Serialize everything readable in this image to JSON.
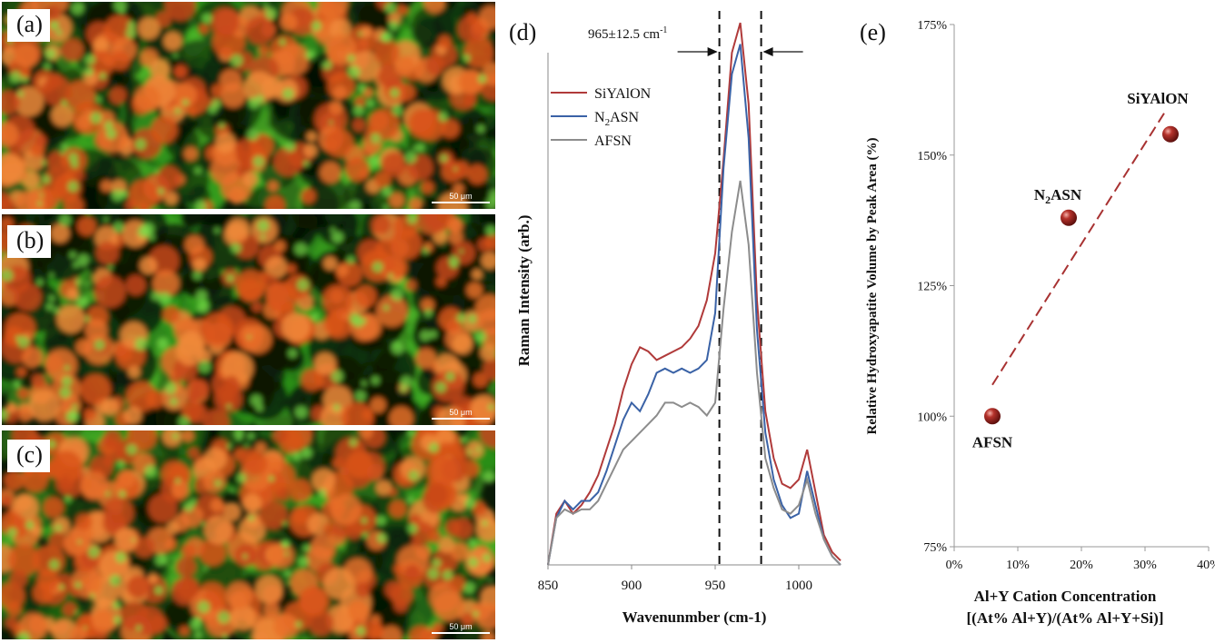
{
  "panels": [
    {
      "label": "(a)",
      "scale_label": "50 μm"
    },
    {
      "label": "(b)",
      "scale_label": "50 μm"
    },
    {
      "label": "(c)",
      "scale_label": "50 μm"
    }
  ],
  "chart_data": [
    {
      "panel": "(d)",
      "type": "line",
      "xlabel": "Wavenunmber (cm-1)",
      "ylabel": "Raman Intensity (arb.)",
      "xlim": [
        850,
        1025
      ],
      "xticks": [
        850,
        900,
        950,
        1000
      ],
      "annotation": "965±12.5 cm",
      "annotation_sup": "-1",
      "vlines": [
        952.5,
        977.5
      ],
      "x": [
        850,
        855,
        860,
        865,
        870,
        875,
        880,
        885,
        890,
        895,
        900,
        905,
        910,
        915,
        920,
        925,
        930,
        935,
        940,
        945,
        950,
        955,
        960,
        965,
        970,
        975,
        980,
        985,
        990,
        995,
        1000,
        1005,
        1010,
        1015,
        1020,
        1025
      ],
      "series": [
        {
          "name": "SiYAlON",
          "color": "#b03a3a",
          "values": [
            0.0,
            0.12,
            0.15,
            0.12,
            0.14,
            0.17,
            0.21,
            0.27,
            0.33,
            0.41,
            0.47,
            0.51,
            0.5,
            0.48,
            0.49,
            0.5,
            0.51,
            0.53,
            0.56,
            0.62,
            0.73,
            0.95,
            1.2,
            1.27,
            1.08,
            0.62,
            0.36,
            0.25,
            0.19,
            0.18,
            0.2,
            0.27,
            0.17,
            0.07,
            0.03,
            0.01
          ]
        },
        {
          "name": "N2ASN",
          "color": "#3a62a6",
          "values": [
            0.0,
            0.11,
            0.15,
            0.13,
            0.15,
            0.15,
            0.17,
            0.22,
            0.28,
            0.34,
            0.38,
            0.36,
            0.4,
            0.45,
            0.46,
            0.45,
            0.46,
            0.45,
            0.46,
            0.48,
            0.59,
            0.93,
            1.15,
            1.22,
            1.0,
            0.55,
            0.31,
            0.2,
            0.14,
            0.11,
            0.12,
            0.22,
            0.14,
            0.06,
            0.02,
            0.0
          ]
        },
        {
          "name": "AFSN",
          "color": "#8c8c8c",
          "values": [
            0.0,
            0.11,
            0.13,
            0.12,
            0.13,
            0.13,
            0.15,
            0.19,
            0.23,
            0.27,
            0.29,
            0.31,
            0.33,
            0.35,
            0.38,
            0.38,
            0.37,
            0.38,
            0.37,
            0.35,
            0.38,
            0.6,
            0.78,
            0.9,
            0.75,
            0.45,
            0.25,
            0.18,
            0.13,
            0.12,
            0.14,
            0.2,
            0.12,
            0.06,
            0.02,
            0.0
          ]
        }
      ]
    },
    {
      "panel": "(e)",
      "type": "scatter",
      "title": "",
      "xlabel": "Al+Y Cation Concentration",
      "xlabel2": "[(At% Al+Y)/(At% Al+Y+Si)]",
      "ylabel": "Relative Hydroxyapatite Volume by Peak Area (%)",
      "xlim": [
        0,
        40
      ],
      "ylim": [
        75,
        175
      ],
      "xticks": [
        0,
        10,
        20,
        30,
        40
      ],
      "xtick_labels": [
        "0%",
        "10%",
        "20%",
        "30%",
        "40%"
      ],
      "yticks": [
        75,
        100,
        125,
        150,
        175
      ],
      "ytick_labels": [
        "75%",
        "100%",
        "125%",
        "150%",
        "175%"
      ],
      "points": [
        {
          "label": "AFSN",
          "x": 6,
          "y": 100
        },
        {
          "label": "N2ASN",
          "x": 18,
          "y": 138
        },
        {
          "label": "SiYAlON",
          "x": 34,
          "y": 154
        }
      ],
      "trendline": {
        "x": [
          6,
          33
        ],
        "y": [
          106,
          158
        ]
      }
    }
  ]
}
